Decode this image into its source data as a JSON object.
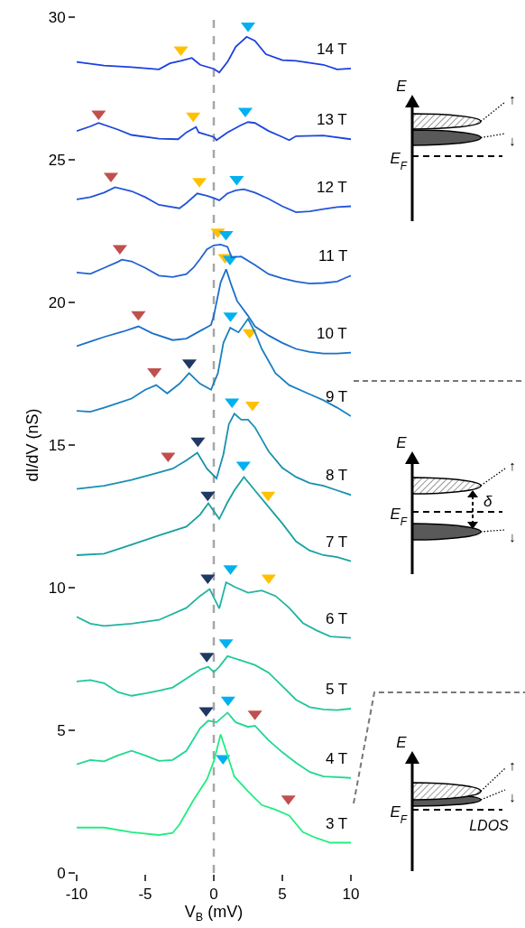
{
  "chart_data": {
    "type": "line",
    "xlabel": "V$_{B}$ (mV)",
    "ylabel": "dI/dV (nS)",
    "xlim": [
      -10,
      10
    ],
    "xticks": [
      -10,
      -5,
      0,
      5,
      10
    ],
    "ylim": [
      0,
      30
    ],
    "yticks": [
      0,
      5,
      10,
      15,
      20,
      25,
      30
    ],
    "grid": false,
    "legend": false,
    "ref_lines": [
      {
        "axis": "x",
        "value": 0,
        "color": "#a6a6a6",
        "line_style": "dashed"
      }
    ],
    "annotations": [
      "E",
      "E$_{F}$",
      "↑",
      "↓",
      "E",
      "E$_{F}$",
      "↑",
      "↓",
      "δ",
      "E",
      "E$_{F}$",
      "↑",
      "↓",
      "LDOS"
    ],
    "series": [
      {
        "name": "14 T",
        "color": "#1c3fe0",
        "x": [
          -10,
          -8,
          -6,
          -4,
          -3.2,
          -2.4,
          -1.6,
          -1,
          0,
          0.4,
          1,
          1.6,
          2.4,
          3,
          3.8,
          5,
          6,
          8,
          9,
          10
        ],
        "values": [
          28.43,
          28.3,
          28.25,
          28.17,
          28.38,
          28.47,
          28.57,
          28.33,
          28.19,
          28.06,
          28.43,
          28.96,
          29.31,
          29.17,
          28.7,
          28.49,
          28.47,
          28.33,
          28.17,
          28.2
        ]
      },
      {
        "name": "13 T",
        "color": "#1e46dc",
        "x": [
          -10,
          -9,
          -8.4,
          -7,
          -6,
          -4,
          -2.6,
          -2,
          -1.3,
          -1.1,
          0,
          0.2,
          1,
          2,
          2.5,
          3,
          4,
          5,
          5.5,
          6,
          8,
          10
        ],
        "values": [
          26.01,
          26.17,
          26.29,
          26.06,
          25.87,
          25.74,
          25.72,
          25.96,
          26.15,
          25.96,
          25.8,
          25.69,
          25.96,
          26.22,
          26.32,
          26.29,
          26.01,
          25.8,
          25.69,
          25.83,
          25.85,
          25.72
        ]
      },
      {
        "name": "12 T",
        "color": "#2255d8",
        "x": [
          -10,
          -9,
          -8,
          -7.2,
          -6,
          -5,
          -4,
          -2.5,
          -2,
          -1.2,
          -0.5,
          0,
          0.4,
          1,
          1.6,
          2.2,
          3,
          4,
          5,
          6,
          7,
          8,
          9,
          10
        ],
        "values": [
          23.61,
          23.69,
          23.85,
          24.04,
          23.9,
          23.69,
          23.42,
          23.3,
          23.48,
          23.82,
          23.74,
          23.66,
          23.58,
          23.82,
          23.93,
          23.97,
          23.85,
          23.63,
          23.37,
          23.16,
          23.19,
          23.27,
          23.34,
          23.37
        ]
      },
      {
        "name": "11 T",
        "color": "#2163d0",
        "x": [
          -10,
          -9,
          -8,
          -7,
          -6.7,
          -6,
          -5,
          -4,
          -3,
          -2,
          -1.5,
          -1,
          -0.5,
          0,
          0.5,
          1,
          1.3,
          2,
          3,
          4,
          5,
          6,
          7,
          8,
          9,
          9.5,
          10
        ],
        "values": [
          21.05,
          21.0,
          21.21,
          21.42,
          21.5,
          21.44,
          21.21,
          20.94,
          20.89,
          20.99,
          21.21,
          21.52,
          21.86,
          22.0,
          22.03,
          21.95,
          21.58,
          21.61,
          21.31,
          20.99,
          20.84,
          20.73,
          20.66,
          20.68,
          20.73,
          20.84,
          20.94
        ]
      },
      {
        "name": "10 T",
        "color": "#1a70c8",
        "x": [
          -10,
          -9,
          -8,
          -6.6,
          -5.5,
          -4.5,
          -3,
          -2,
          -1,
          -0.2,
          0,
          0.5,
          0.9,
          1.3,
          1.7,
          2.5,
          3,
          4,
          5,
          6,
          7,
          8,
          9,
          10
        ],
        "values": [
          18.47,
          18.63,
          18.79,
          18.98,
          19.16,
          18.92,
          18.68,
          18.73,
          19.0,
          19.21,
          19.53,
          20.7,
          21.16,
          20.58,
          20.05,
          19.53,
          19.16,
          18.84,
          18.58,
          18.37,
          18.26,
          18.21,
          18.21,
          18.24
        ]
      },
      {
        "name": "9 T",
        "color": "#1a80c0",
        "x": [
          -10,
          -9,
          -8,
          -7,
          -6,
          -5,
          -4.2,
          -3.4,
          -2.5,
          -1.8,
          -1,
          -0.2,
          0.3,
          0.7,
          1.2,
          1.8,
          2.5,
          3,
          3.5,
          4.5,
          5.5,
          7,
          8,
          9,
          10
        ],
        "values": [
          16.2,
          16.17,
          16.31,
          16.47,
          16.63,
          16.94,
          17.1,
          16.81,
          17.15,
          17.52,
          17.15,
          16.94,
          17.52,
          18.58,
          19.11,
          18.95,
          19.42,
          18.95,
          18.37,
          17.52,
          17.1,
          16.78,
          16.57,
          16.31,
          16.01
        ]
      },
      {
        "name": "8 T",
        "color": "#1890b0",
        "x": [
          -10,
          -8,
          -6,
          -4,
          -3,
          -2,
          -1.2,
          -0.5,
          0.2,
          0.7,
          1.1,
          1.5,
          2,
          2.5,
          3,
          4,
          5,
          6,
          7,
          8,
          9,
          10
        ],
        "values": [
          13.46,
          13.57,
          13.78,
          14.04,
          14.17,
          14.46,
          14.73,
          14.17,
          13.83,
          14.67,
          15.73,
          16.1,
          15.89,
          15.89,
          15.62,
          14.78,
          14.2,
          13.88,
          13.67,
          13.57,
          13.41,
          13.25
        ]
      },
      {
        "name": "7 T",
        "color": "#18a0a0",
        "x": [
          -10,
          -8,
          -6,
          -4,
          -2,
          -1,
          -0.4,
          0.4,
          1,
          1.5,
          2.2,
          3,
          4,
          5,
          6,
          7,
          8,
          9,
          10
        ],
        "values": [
          11.14,
          11.19,
          11.51,
          11.83,
          12.14,
          12.56,
          12.96,
          12.41,
          12.99,
          13.41,
          13.88,
          13.41,
          12.83,
          12.25,
          11.62,
          11.3,
          11.14,
          11.07,
          10.93
        ]
      },
      {
        "name": "6 T",
        "color": "#20b4a0",
        "x": [
          -10,
          -9,
          -8,
          -6,
          -4,
          -2,
          -1,
          -0.3,
          0.4,
          0.9,
          1.5,
          2.5,
          3.5,
          4.5,
          5.5,
          6.5,
          7.5,
          8.5,
          10
        ],
        "values": [
          8.98,
          8.74,
          8.66,
          8.74,
          8.87,
          9.29,
          9.71,
          9.95,
          9.27,
          10.19,
          10.03,
          9.82,
          9.9,
          9.71,
          9.29,
          8.76,
          8.5,
          8.29,
          8.24
        ]
      },
      {
        "name": "5 T",
        "color": "#20c898",
        "x": [
          -10,
          -9,
          -8,
          -7,
          -6,
          -5,
          -4,
          -3,
          -2,
          -1,
          -0.4,
          0,
          0.4,
          1,
          2,
          3,
          4,
          5,
          6,
          7,
          8,
          9,
          10
        ],
        "values": [
          6.71,
          6.76,
          6.65,
          6.34,
          6.21,
          6.29,
          6.39,
          6.5,
          6.81,
          7.13,
          7.23,
          7.04,
          7.23,
          7.6,
          7.45,
          7.29,
          7.02,
          6.55,
          6.07,
          5.81,
          5.73,
          5.71,
          5.76
        ]
      },
      {
        "name": "4 T",
        "color": "#20d890",
        "x": [
          -10,
          -9,
          -8,
          -7,
          -6,
          -5,
          -4,
          -3,
          -2,
          -1,
          -0.4,
          0.2,
          1,
          1.6,
          2.5,
          3,
          4,
          5,
          6,
          7,
          8,
          9,
          10
        ],
        "values": [
          3.81,
          3.96,
          3.91,
          4.12,
          4.28,
          4.12,
          3.93,
          3.96,
          4.28,
          5.07,
          5.34,
          5.28,
          5.62,
          5.28,
          5.12,
          5.16,
          4.65,
          4.23,
          3.86,
          3.54,
          3.38,
          3.36,
          3.33
        ]
      },
      {
        "name": "3 T",
        "color": "#20ee80",
        "x": [
          -10,
          -8,
          -6,
          -4,
          -3,
          -2.5,
          -1.5,
          -0.5,
          0,
          0.5,
          1,
          1.5,
          2.5,
          3.5,
          4.5,
          5.5,
          6.5,
          7.5,
          8.5,
          10
        ],
        "values": [
          1.59,
          1.59,
          1.43,
          1.33,
          1.4,
          1.7,
          2.54,
          3.28,
          3.91,
          4.86,
          4.12,
          3.38,
          2.86,
          2.38,
          2.22,
          2.01,
          1.43,
          1.22,
          1.06,
          1.06
        ]
      },
      {
        "type": "scatter",
        "marker": "triangle",
        "color": "#c0504d",
        "x": [
          -8.4,
          -7.5,
          -6.85,
          -5.5,
          -4.33,
          -3.33,
          3.0,
          5.44
        ],
        "values": [
          26.61,
          24.43,
          21.9,
          19.58,
          17.58,
          14.62,
          5.58,
          2.6
        ]
      },
      {
        "type": "scatter",
        "marker": "triangle",
        "color": "#ffc000",
        "x": [
          -2.4,
          -1.5,
          -1.05,
          0.29,
          0.82,
          2.62,
          2.82,
          3.96,
          4.0
        ],
        "values": [
          28.86,
          26.54,
          24.25,
          22.48,
          21.58,
          18.95,
          16.41,
          13.25,
          10.35
        ]
      },
      {
        "type": "scatter",
        "marker": "triangle",
        "color": "#00b0f0",
        "x": [
          2.5,
          2.3,
          1.67,
          0.89,
          1.18,
          1.22,
          1.33,
          2.16,
          1.22,
          0.89,
          1.04,
          0.67
        ],
        "values": [
          29.7,
          26.71,
          24.32,
          22.39,
          21.52,
          19.53,
          16.52,
          14.3,
          10.67,
          8.08,
          6.07,
          4.02
        ]
      },
      {
        "type": "scatter",
        "marker": "triangle",
        "color": "#1f3864",
        "x": [
          -1.78,
          -1.16,
          -0.44,
          -0.44,
          -0.51,
          -0.56
        ],
        "values": [
          17.89,
          15.15,
          13.25,
          10.35,
          7.6,
          5.7
        ]
      }
    ]
  }
}
